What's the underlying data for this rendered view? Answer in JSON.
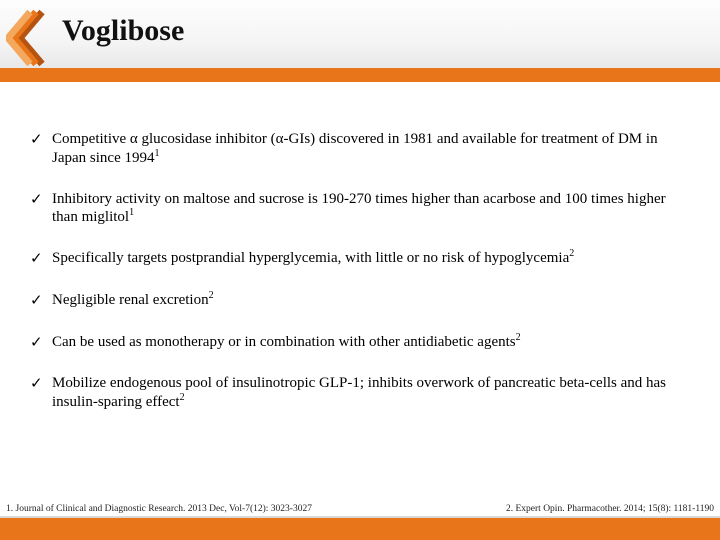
{
  "colors": {
    "accent": "#e8751a",
    "chevron_dark": "#b55310",
    "chevron_light": "#f08a2a",
    "text": "#000000",
    "header_grad_top": "#fdfdfd",
    "header_grad_bottom": "#e8e8e8"
  },
  "title": "Voglibose",
  "bullets": [
    {
      "text": "Competitive α glucosidase inhibitor (α-GIs) discovered in 1981 and available for treatment of DM in Japan since 1994",
      "sup": "1"
    },
    {
      "text": "Inhibitory activity on maltose and sucrose is 190-270 times higher than  acarbose and 100 times higher than miglitol",
      "sup": "1"
    },
    {
      "text": "Specifically targets postprandial hyperglycemia, with little or no risk of hypoglycemia",
      "sup": "2"
    },
    {
      "text": "Negligible renal excretion",
      "sup": "2"
    },
    {
      "text": "Can be used as monotherapy or in combination with other antidiabetic agents",
      "sup": "2"
    },
    {
      "text": "Mobilize endogenous pool of insulinotropic GLP-1; inhibits overwork of pancreatic beta-cells and has insulin-sparing effect",
      "sup": "2"
    }
  ],
  "references": {
    "left": "1. Journal of Clinical and Diagnostic Research. 2013 Dec, Vol-7(12): 3023-3027",
    "right": "2. Expert Opin. Pharmacother. 2014; 15(8): 1181-1190"
  }
}
